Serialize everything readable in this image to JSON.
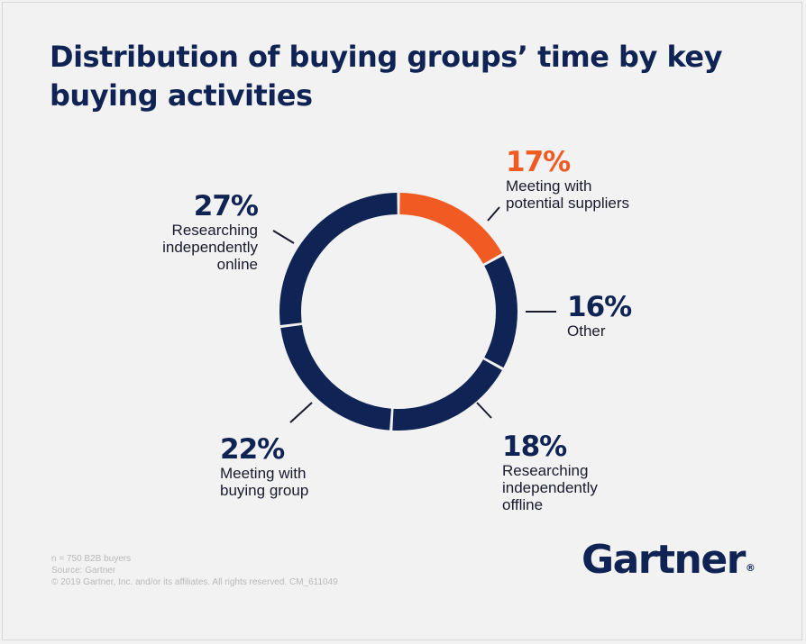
{
  "title": "Distribution of buying groups’ time by key buying activities",
  "chart_data": {
    "type": "pie",
    "variant": "donut",
    "title": "Distribution of buying groups’ time by key buying activities",
    "slices": [
      {
        "label": "Meeting with potential suppliers",
        "value": 17,
        "display": "17%",
        "color": "#f15a22"
      },
      {
        "label": "Other",
        "value": 16,
        "display": "16%",
        "color": "#0f2454"
      },
      {
        "label": "Researching independently offline",
        "value": 18,
        "display": "18%",
        "color": "#0f2454"
      },
      {
        "label": "Meeting with buying group",
        "value": 22,
        "display": "22%",
        "color": "#0f2454"
      },
      {
        "label": "Researching independently online",
        "value": 27,
        "display": "27%",
        "color": "#0f2454"
      }
    ]
  },
  "callouts": {
    "suppliers": {
      "pct": "17%",
      "line1": "Meeting with",
      "line2": "potential suppliers"
    },
    "other": {
      "pct": "16%",
      "line1": "Other"
    },
    "offline": {
      "pct": "18%",
      "line1": "Researching",
      "line2": "independently",
      "line3": "offline"
    },
    "buying_group": {
      "pct": "22%",
      "line1": "Meeting with",
      "line2": "buying group"
    },
    "online": {
      "pct": "27%",
      "line1": "Researching",
      "line2": "independently",
      "line3": "online"
    }
  },
  "footnote": {
    "line1": "n = 750 B2B buyers",
    "line2": "Source: Gartner",
    "line3": "© 2019 Gartner, Inc. and/or its affiliates. All rights reserved. CM_611049"
  },
  "brand": {
    "name": "Gartner",
    "mark": "®"
  }
}
